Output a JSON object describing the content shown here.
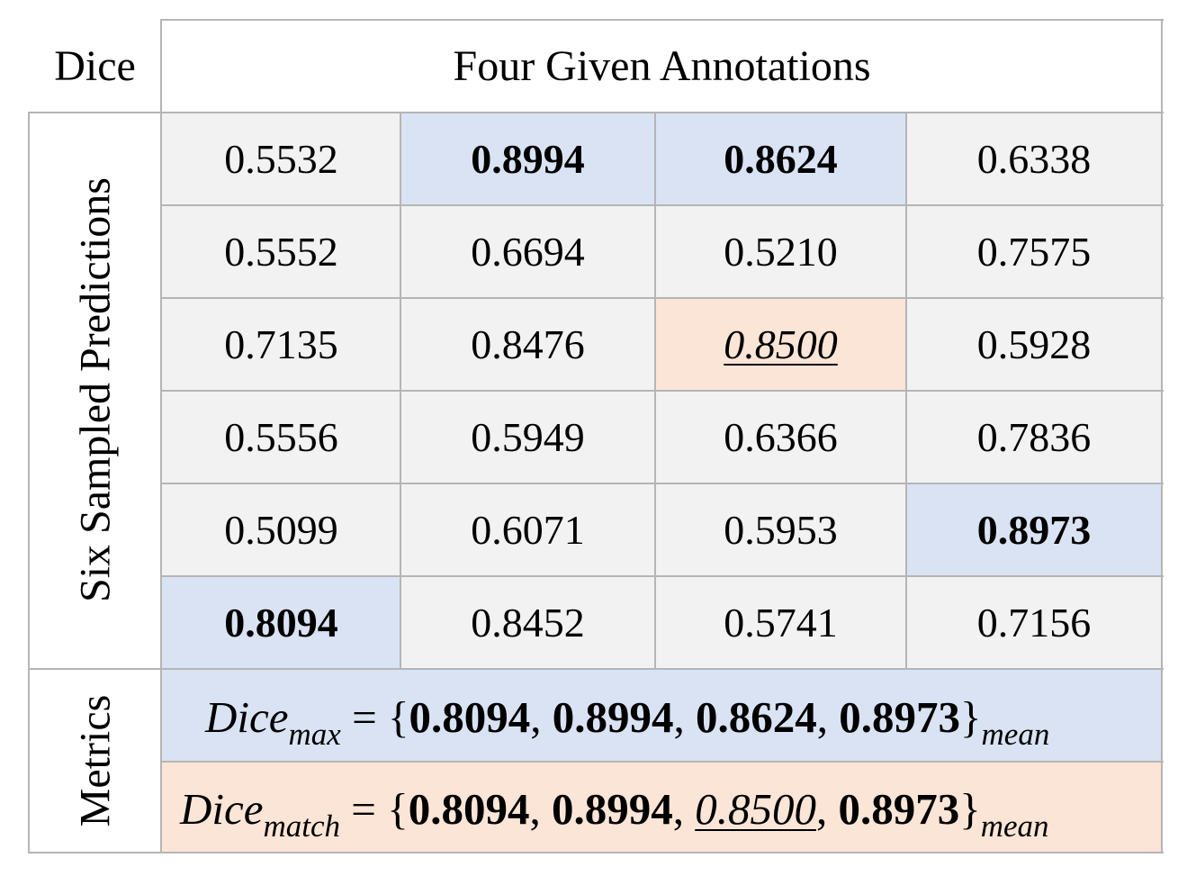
{
  "corner_label": "Dice",
  "column_header": "Four Given Annotations",
  "row_group_label": "Six Sampled Predictions",
  "metrics_label": "Metrics",
  "grid": [
    [
      "0.5532",
      "0.8994",
      "0.8624",
      "0.6338"
    ],
    [
      "0.5552",
      "0.6694",
      "0.5210",
      "0.7575"
    ],
    [
      "0.7135",
      "0.8476",
      "0.8500",
      "0.5928"
    ],
    [
      "0.5556",
      "0.5949",
      "0.6366",
      "0.7836"
    ],
    [
      "0.5099",
      "0.6071",
      "0.5953",
      "0.8973"
    ],
    [
      "0.8094",
      "0.8452",
      "0.5741",
      "0.7156"
    ]
  ],
  "highlight": {
    "max": [
      [
        0,
        1
      ],
      [
        0,
        2
      ],
      [
        4,
        3
      ],
      [
        5,
        0
      ]
    ],
    "match": [
      [
        2,
        2
      ]
    ]
  },
  "colors": {
    "cell_bg": "#f2f2f2",
    "max_bg": "#dae3f3",
    "match_bg": "#fbe5d6",
    "border": "#b5b5b5"
  },
  "metrics": {
    "max": {
      "name": "Dice",
      "subscript": "max",
      "equals": "=",
      "open": "{",
      "values": [
        "0.8094",
        "0.8994",
        "0.8624",
        "0.8973"
      ],
      "close": "}",
      "post_subscript": "mean"
    },
    "match": {
      "name": "Dice",
      "subscript": "match",
      "equals": "=",
      "open": "{",
      "values": [
        "0.8094",
        "0.8994",
        "0.8500",
        "0.8973"
      ],
      "close": "}",
      "post_subscript": "mean"
    }
  }
}
